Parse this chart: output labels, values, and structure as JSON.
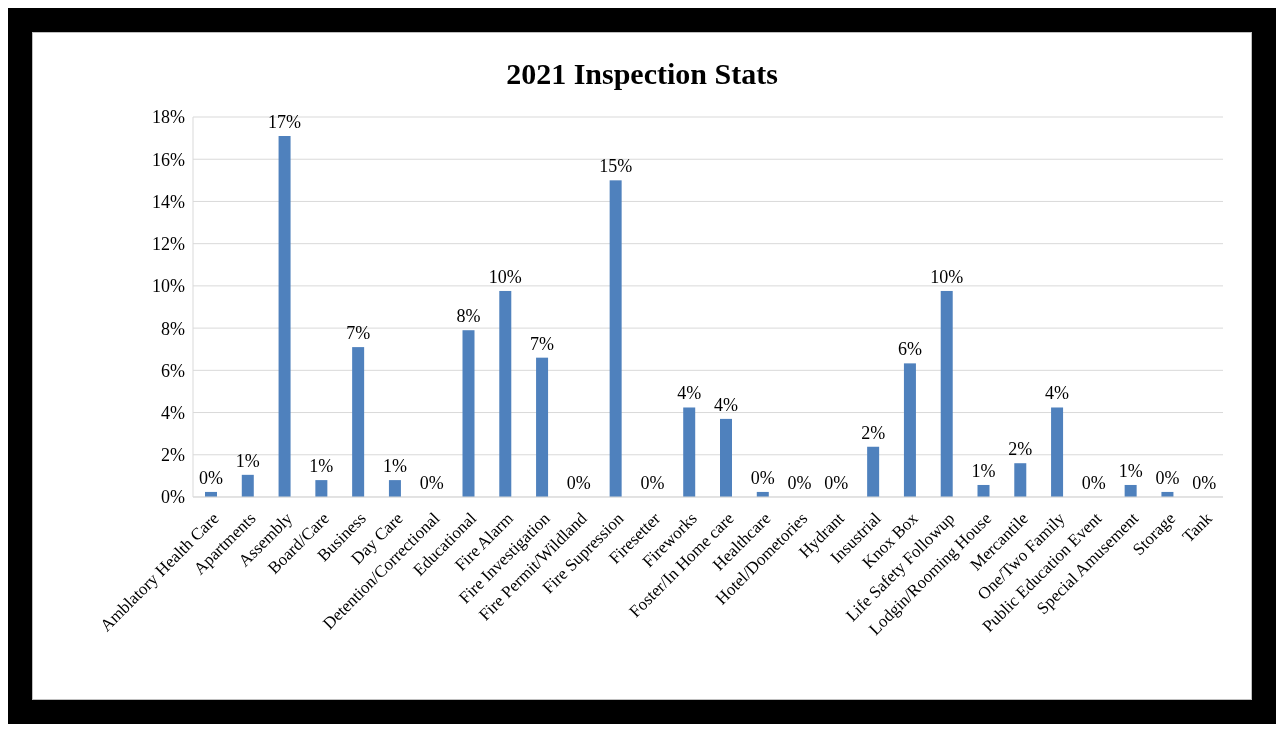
{
  "chart_data": {
    "type": "bar",
    "title": "2021 Inspection Stats",
    "categories": [
      "Amblatory Health Care",
      "Apartments",
      "Assembly",
      "Board/Care",
      "Business",
      "Day Care",
      "Detention/Correctional",
      "Educational",
      "Fire Alarm",
      "Fire Investigation",
      "Fire Permit/Wildland",
      "Fire Supression",
      "Firesetter",
      "Fireworks",
      "Foster/In Home care",
      "Healthcare",
      "Hotel/Dometories",
      "Hydrant",
      "Insustrial",
      "Knox Box",
      "Life Safety Followup",
      "Lodgin/Rooming House",
      "Mercantile",
      "One/Two Family",
      "Public Education Event",
      "Special Amusement",
      "Storage",
      "Tank"
    ],
    "values": [
      0.24,
      1.05,
      17.1,
      0.8,
      7.1,
      0.8,
      0,
      7.9,
      9.76,
      6.6,
      0,
      15.0,
      0,
      4.24,
      3.7,
      0.24,
      0,
      0,
      2.38,
      6.33,
      9.76,
      0.57,
      1.6,
      4.24,
      0,
      0.57,
      0.24,
      0
    ],
    "value_labels": [
      "0%",
      "1%",
      "17%",
      "1%",
      "7%",
      "1%",
      "0%",
      "8%",
      "10%",
      "7%",
      "0%",
      "15%",
      "0%",
      "4%",
      "4%",
      "0%",
      "0%",
      "0%",
      "2%",
      "6%",
      "10%",
      "1%",
      "2%",
      "4%",
      "0%",
      "1%",
      "0%",
      "0%"
    ],
    "color": "#4f81bd",
    "ylim": [
      0,
      18
    ],
    "yticks": [
      {
        "value": 0,
        "label": "0%"
      },
      {
        "value": 2,
        "label": "2%"
      },
      {
        "value": 4,
        "label": "4%"
      },
      {
        "value": 6,
        "label": "6%"
      },
      {
        "value": 8,
        "label": "8%"
      },
      {
        "value": 10,
        "label": "10%"
      },
      {
        "value": 12,
        "label": "12%"
      },
      {
        "value": 14,
        "label": "14%"
      },
      {
        "value": 16,
        "label": "16%"
      },
      {
        "value": 18,
        "label": "18%"
      }
    ],
    "grid": "y"
  }
}
